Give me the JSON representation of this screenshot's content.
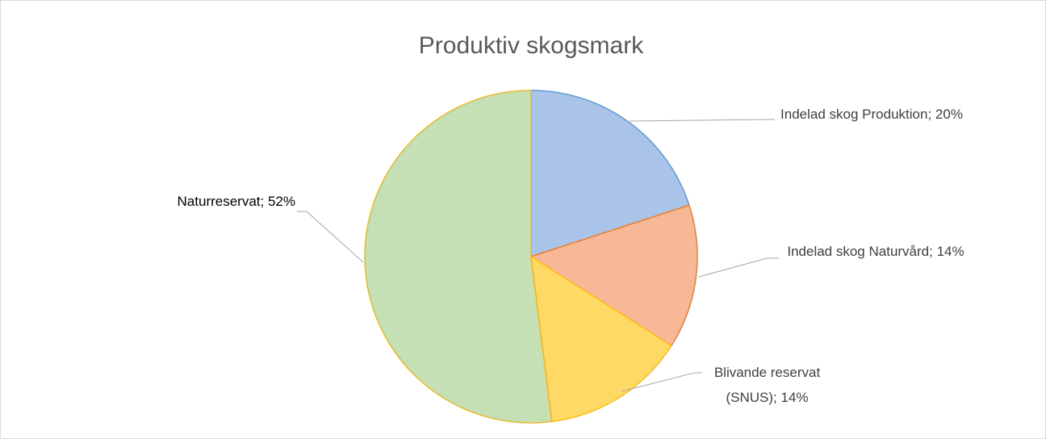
{
  "chart_data": {
    "type": "pie",
    "title": "Produktiv skogsmark",
    "categories": [
      "Indelad skog Produktion",
      "Indelad skog Naturvård",
      "Blivande reservat (SNUS)",
      "Naturreservat"
    ],
    "values": [
      20,
      14,
      14,
      52
    ],
    "value_labels": [
      "20%",
      "14%",
      "14%",
      "52%"
    ],
    "label_separator": "; ",
    "colors": [
      "#a9c4e8",
      "#f6b896",
      "#ffd966",
      "#c5e0b4"
    ],
    "stroke_colors": [
      "#5b9bd5",
      "#ed7d31",
      "#ffc000",
      "#e8b830"
    ]
  }
}
